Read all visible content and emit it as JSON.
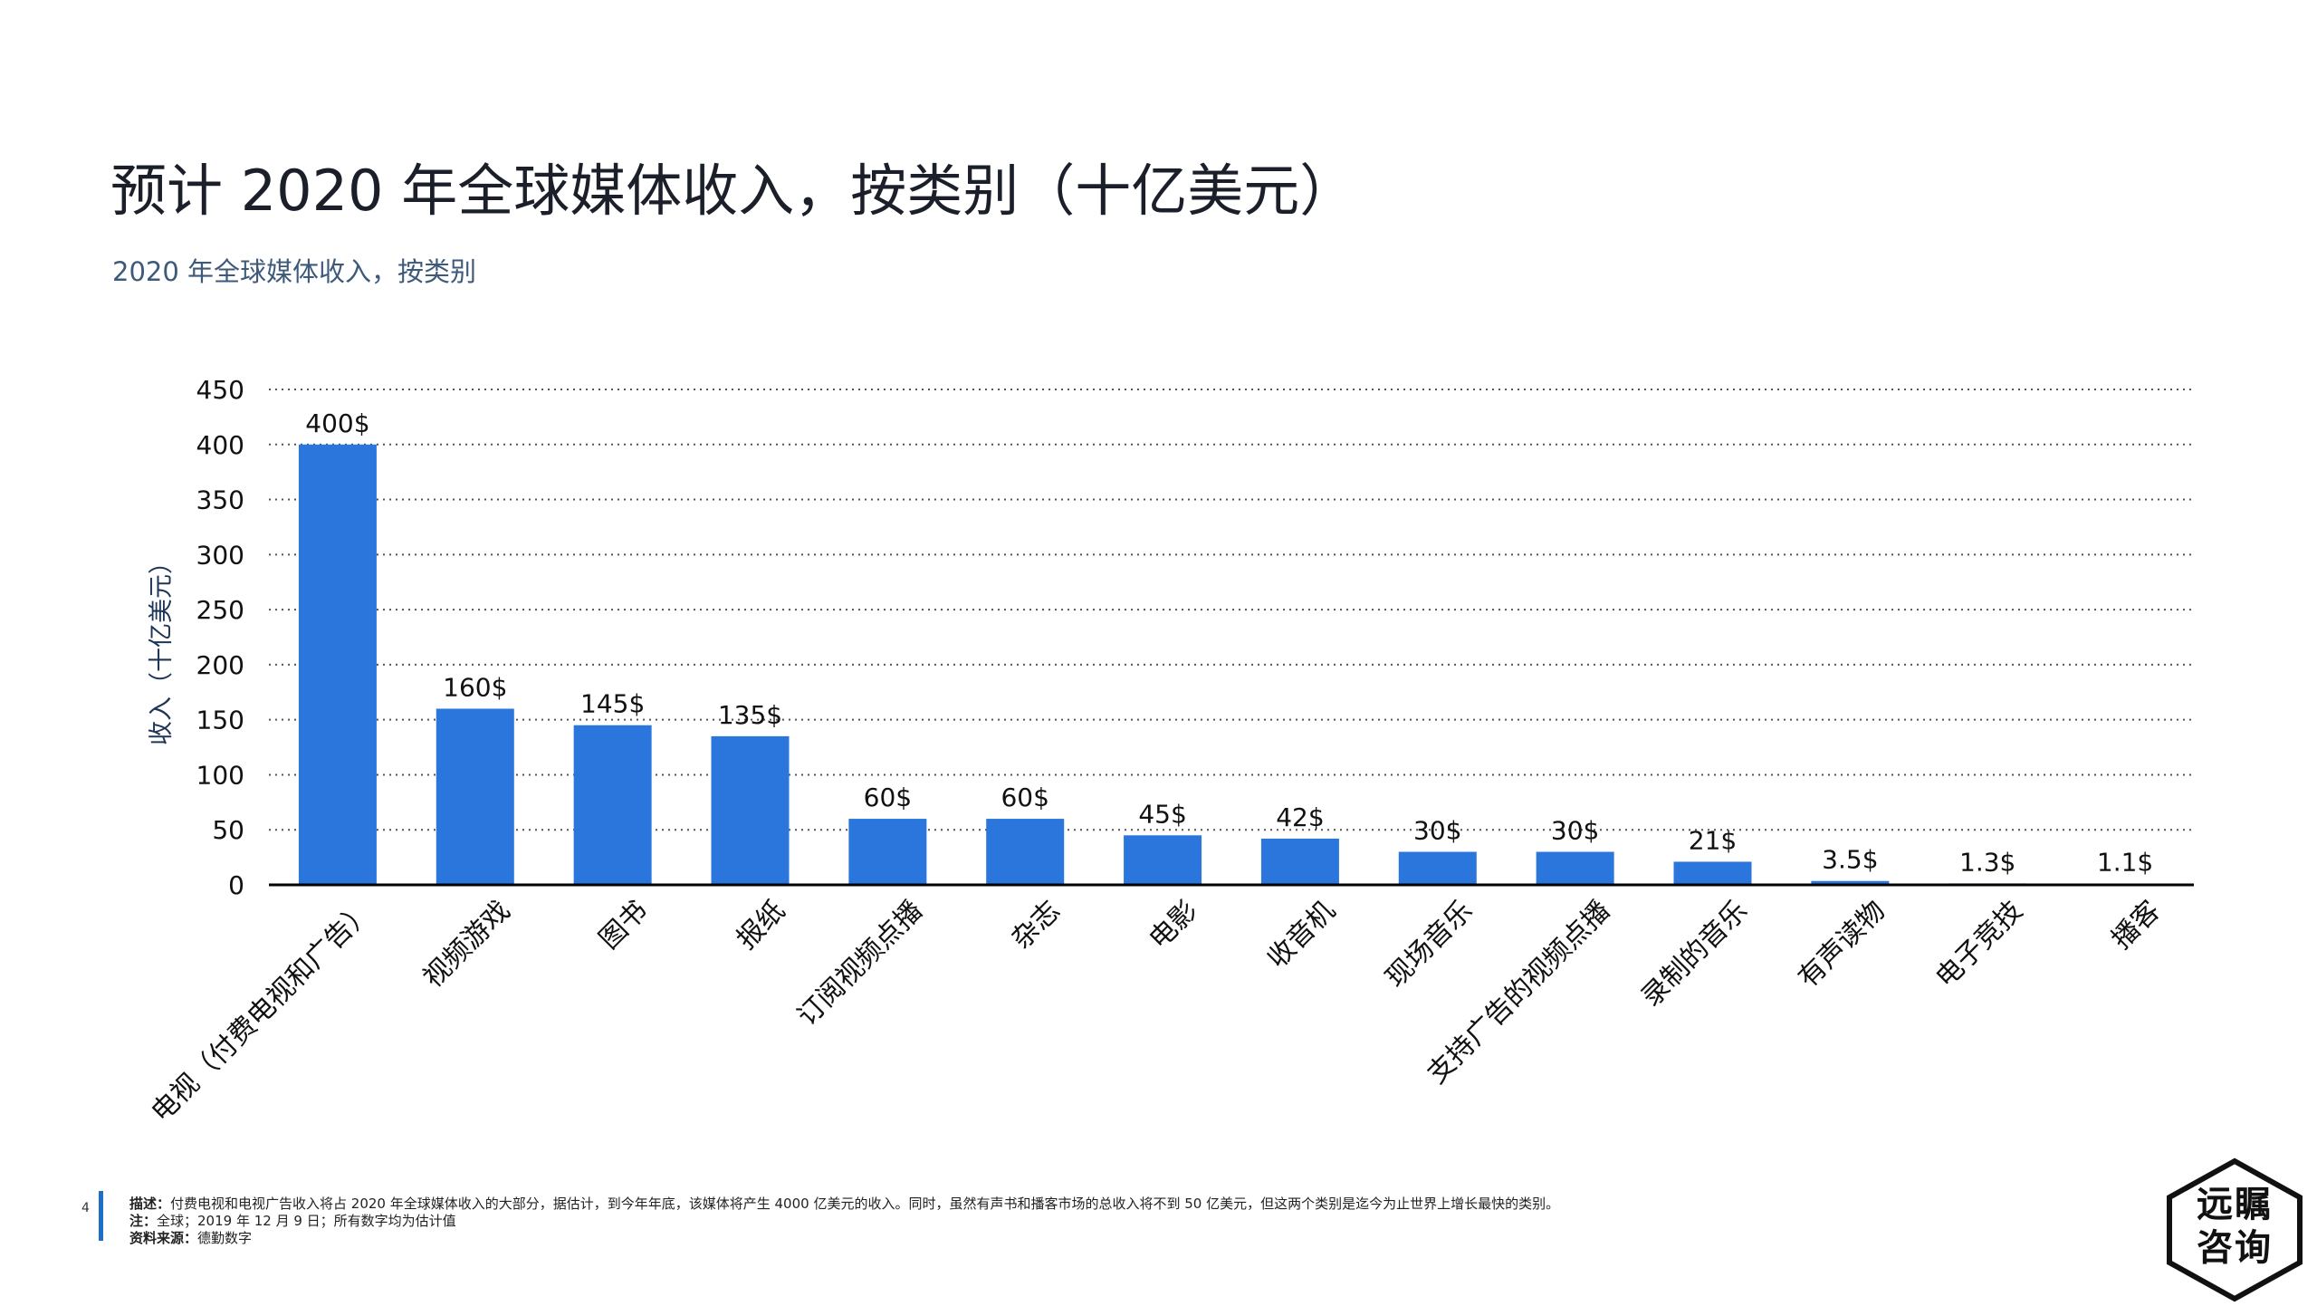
{
  "header": {
    "title": "预计 2020 年全球媒体收入，按类别（十亿美元）",
    "subtitle": "2020 年全球媒体收入，按类别"
  },
  "chart_data": {
    "type": "bar",
    "ylabel": "收入（十亿美元）",
    "ylim": [
      0,
      450
    ],
    "yticks": [
      0,
      50,
      100,
      150,
      200,
      250,
      300,
      350,
      400,
      450
    ],
    "grid": "horizontal dotted",
    "categories": [
      "电视（付费电视和广告）",
      "视频游戏",
      "图书",
      "报纸",
      "订阅视频点播",
      "杂志",
      "电影",
      "收音机",
      "现场音乐",
      "支持广告的视频点播",
      "录制的音乐",
      "有声读物",
      "电子竞技",
      "播客"
    ],
    "values": [
      400,
      160,
      145,
      135,
      60,
      60,
      45,
      42,
      30,
      30,
      21,
      3.5,
      1.3,
      1.1
    ],
    "data_labels": [
      "400$",
      "160$",
      "145$",
      "135$",
      "60$",
      "60$",
      "45$",
      "42$",
      "30$",
      "30$",
      "21$",
      "3.5$",
      "1.3$",
      "1.1$"
    ],
    "bar_color": "#2a76dd"
  },
  "footer": {
    "page_number": "4",
    "description_label": "描述：",
    "description": "付费电视和电视广告收入将占 2020 年全球媒体收入的大部分，据估计，到今年年底，该媒体将产生 4000 亿美元的收入。同时，虽然有声书和播客市场的总收入将不到 50 亿美元，但这两个类别是迄今为止世界上增长最快的类别。",
    "note_label": "注：",
    "note": "全球；2019 年 12 月 9 日；所有数字均为估计值",
    "source_label": "资料来源：",
    "source": "德勤数字"
  },
  "logo": {
    "line1": "远瞩",
    "line2": "咨询"
  }
}
